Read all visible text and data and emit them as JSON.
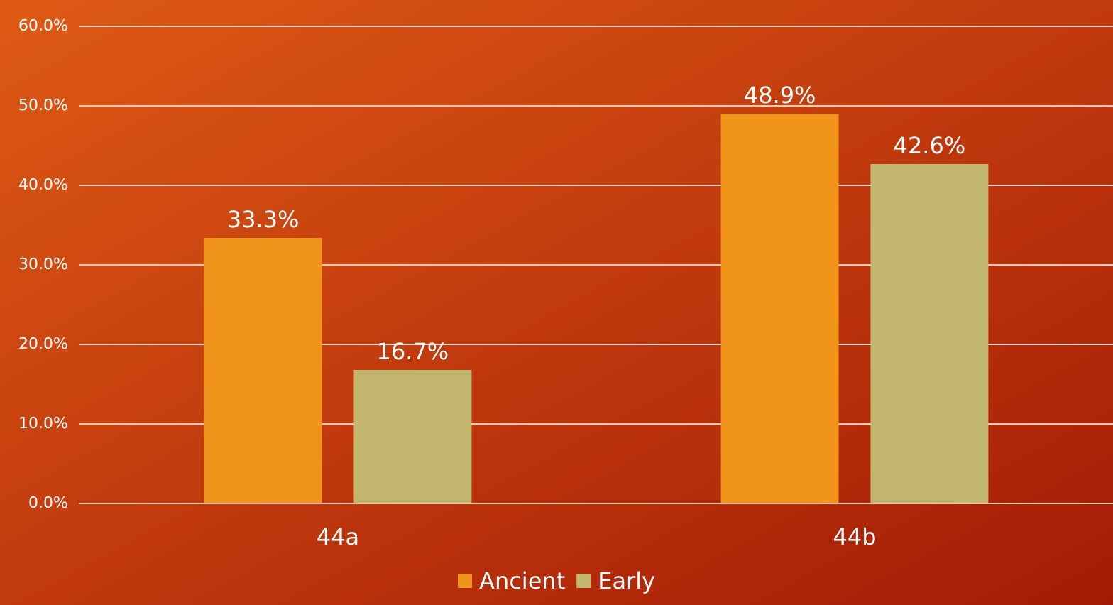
{
  "chart_data": {
    "type": "bar",
    "categories": [
      "44a",
      "44b"
    ],
    "series": [
      {
        "name": "Ancient",
        "color": "#f0951a",
        "values": [
          33.3,
          48.9
        ],
        "value_labels": [
          "33.3%",
          "48.9%"
        ]
      },
      {
        "name": "Early",
        "color": "#c2b66e",
        "values": [
          16.7,
          42.6
        ],
        "value_labels": [
          "16.7%",
          "42.6%"
        ]
      }
    ],
    "ylim": [
      0,
      60
    ],
    "yticks": [
      {
        "value": 0,
        "label": "0.0%"
      },
      {
        "value": 10,
        "label": "10.0%"
      },
      {
        "value": 20,
        "label": "20.0%"
      },
      {
        "value": 30,
        "label": "30.0%"
      },
      {
        "value": 40,
        "label": "40.0%"
      },
      {
        "value": 50,
        "label": "50.0%"
      },
      {
        "value": 60,
        "label": "60.0%"
      }
    ],
    "grid": "y",
    "legend": "bottom"
  }
}
